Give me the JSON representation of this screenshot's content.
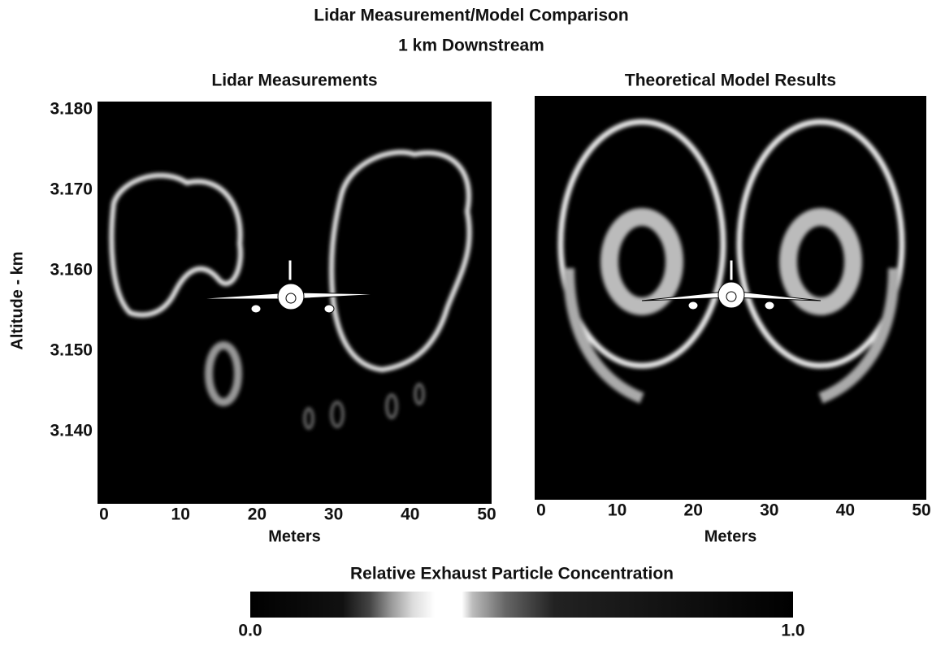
{
  "title": "Lidar Measurement/Model Comparison",
  "subtitle": "1 km Downstream",
  "chart_data": [
    {
      "type": "heatmap",
      "title": "Lidar Measurements",
      "xlabel": "Meters",
      "ylabel": "Altitude - km",
      "xlim": [
        0,
        50
      ],
      "xticks": [
        0,
        10,
        20,
        30,
        40,
        50
      ],
      "ylim": [
        3.131,
        3.181
      ],
      "yticks": [
        {
          "value": 3.14,
          "label": "3.140"
        },
        {
          "value": 3.15,
          "label": "3.150"
        },
        {
          "value": 3.16,
          "label": "3.160"
        },
        {
          "value": 3.17,
          "label": "3.170"
        },
        {
          "value": 3.18,
          "label": "3.180"
        }
      ]
    },
    {
      "type": "heatmap",
      "title": "Theoretical Model Results",
      "xlabel": "Meters",
      "xlim": [
        0,
        50
      ],
      "xticks": [
        0,
        10,
        20,
        30,
        40,
        50
      ]
    }
  ],
  "colorbar": {
    "title": "Relative Exhaust Particle Concentration",
    "lim": [
      0,
      1
    ],
    "ticks": [
      {
        "value": 0,
        "label": "0.0"
      },
      {
        "value": 1,
        "label": "1.0"
      }
    ]
  }
}
